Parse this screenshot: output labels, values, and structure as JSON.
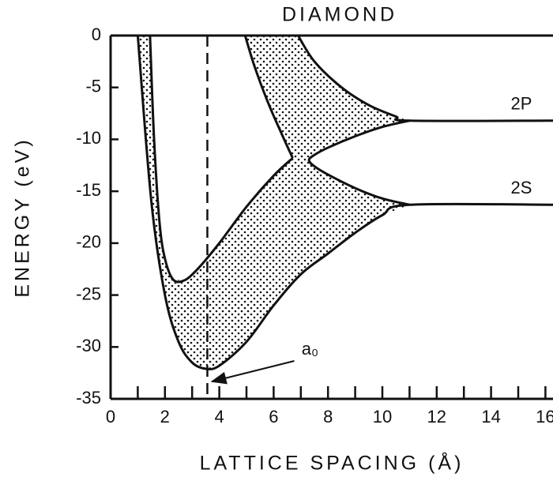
{
  "chart_data": {
    "type": "band-diagram",
    "title": "DIAMOND",
    "xlabel": "LATTICE SPACING (Å)",
    "ylabel": "ENERGY (eV)",
    "xlim": [
      0,
      16.3
    ],
    "ylim": [
      -35,
      0
    ],
    "xticks": [
      0,
      2,
      4,
      6,
      8,
      10,
      12,
      14,
      16
    ],
    "xminorticks": [
      1,
      3,
      5,
      7,
      9,
      11,
      13,
      15
    ],
    "yticks": [
      0,
      -5,
      -10,
      -15,
      -20,
      -25,
      -30,
      -35
    ],
    "color": "#111111",
    "series": [
      {
        "name": "2S",
        "x": [
          1.0,
          1.5,
          2,
          2.5,
          3,
          3.5,
          4,
          5,
          6,
          7,
          8,
          9,
          10,
          11,
          16.3
        ],
        "values": [
          0,
          -16,
          -25,
          -29.5,
          -31.5,
          -32.1,
          -31.8,
          -29.5,
          -26,
          -23,
          -21,
          -19,
          -17.3,
          -16.3,
          -16.3
        ]
      },
      {
        "x": [
          1.45,
          1.6,
          1.8,
          2,
          2.3,
          2.7,
          3.2,
          4,
          5,
          6,
          6.7
        ],
        "values": [
          0,
          -10,
          -18,
          -21.5,
          -23.5,
          -23.6,
          -22.5,
          -20,
          -16.5,
          -13.5,
          -11.8
        ]
      },
      {
        "x": [
          4.95,
          5.3,
          5.8,
          6.3,
          6.7
        ],
        "values": [
          0,
          -3,
          -6.5,
          -9.5,
          -11.8
        ]
      },
      {
        "name": "2P",
        "x": [
          6.9,
          7.5,
          8.5,
          9.5,
          10.5,
          11,
          16.3
        ],
        "values": [
          0,
          -2.5,
          -5,
          -6.7,
          -7.8,
          -8.2,
          -8.2
        ]
      },
      {
        "x": [
          11,
          10,
          9,
          8,
          7.5,
          7.3,
          7.5,
          8,
          9,
          10,
          11
        ],
        "values": [
          -8.2,
          -8.8,
          -9.7,
          -10.8,
          -11.5,
          -12,
          -12.6,
          -13.4,
          -14.7,
          -15.7,
          -16.3
        ]
      }
    ],
    "annotations": [
      {
        "text": "a₀",
        "x": 3.56
      }
    ]
  }
}
